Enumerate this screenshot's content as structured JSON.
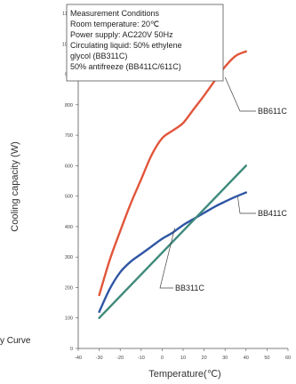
{
  "chart_data": {
    "type": "line",
    "xlabel": "Temperature(℃)",
    "ylabel": "Cooling capacity (W)",
    "x_ticks": [
      -40,
      -30,
      -20,
      -10,
      0,
      10,
      20,
      30,
      40,
      50,
      60
    ],
    "y_ticks": [
      0,
      100,
      200,
      300,
      400,
      500,
      600,
      700,
      800,
      900,
      1000,
      1100
    ],
    "xlim": [
      -40,
      60
    ],
    "ylim": [
      0,
      1100
    ],
    "grid": false,
    "series": [
      {
        "name": "BB611C",
        "color": "#e2553a",
        "x": [
          -30,
          -25,
          -20,
          -15,
          -10,
          -5,
          0,
          5,
          10,
          15,
          20,
          25,
          30,
          35,
          40
        ],
        "y": [
          175,
          290,
          385,
          475,
          555,
          635,
          690,
          715,
          740,
          785,
          830,
          878,
          925,
          960,
          975
        ]
      },
      {
        "name": "BB411C",
        "color": "#2f55a4",
        "x": [
          -30,
          -25,
          -20,
          -15,
          -10,
          -5,
          0,
          5,
          10,
          15,
          20,
          25,
          30,
          35,
          40
        ],
        "y": [
          120,
          195,
          250,
          285,
          310,
          335,
          360,
          380,
          405,
          425,
          445,
          465,
          482,
          498,
          512
        ]
      },
      {
        "name": "BB311C",
        "color": "#3f8a7c",
        "x": [
          -30,
          40
        ],
        "y": [
          100,
          600
        ]
      }
    ],
    "annotations": {
      "conditions_title": "Measurement Conditions",
      "conditions_lines": [
        "Room temperature: 20℃",
        "Power supply: AC220V 50Hz",
        "Circulating liquid: 50% ethylene",
        "glycol (BB311C)",
        "50% antifreeze (BB411C/611C)"
      ],
      "truncated_title": "y Curve"
    }
  }
}
